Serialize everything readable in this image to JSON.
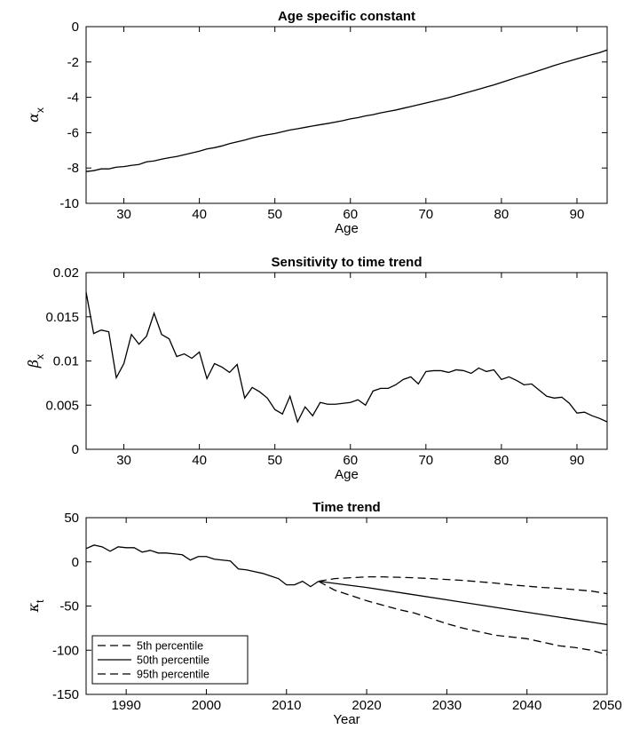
{
  "chart_data": [
    {
      "type": "line",
      "title": "Age specific constant",
      "xlabel": "Age",
      "ylabel": "α",
      "ylabel_sub": "x",
      "xlim": [
        25,
        94
      ],
      "ylim": [
        -10,
        0
      ],
      "xticks": [
        30,
        40,
        50,
        60,
        70,
        80,
        90
      ],
      "yticks": [
        -10,
        -8,
        -6,
        -4,
        -2,
        0
      ],
      "grid": false,
      "series": [
        {
          "style": "solid",
          "x": [
            25,
            26,
            27,
            28,
            29,
            30,
            31,
            32,
            33,
            34,
            35,
            36,
            37,
            38,
            39,
            40,
            41,
            42,
            43,
            44,
            45,
            46,
            47,
            48,
            49,
            50,
            51,
            52,
            53,
            54,
            55,
            56,
            57,
            58,
            59,
            60,
            61,
            62,
            63,
            64,
            65,
            66,
            67,
            68,
            69,
            70,
            71,
            72,
            73,
            74,
            75,
            76,
            77,
            78,
            79,
            80,
            81,
            82,
            83,
            84,
            85,
            86,
            87,
            88,
            89,
            90,
            91,
            92,
            93,
            94
          ],
          "y": [
            -8.2,
            -8.15,
            -8.05,
            -8.05,
            -7.95,
            -7.92,
            -7.85,
            -7.8,
            -7.65,
            -7.6,
            -7.5,
            -7.42,
            -7.35,
            -7.25,
            -7.15,
            -7.05,
            -6.92,
            -6.85,
            -6.75,
            -6.62,
            -6.52,
            -6.42,
            -6.3,
            -6.2,
            -6.12,
            -6.05,
            -5.95,
            -5.85,
            -5.78,
            -5.7,
            -5.62,
            -5.55,
            -5.48,
            -5.4,
            -5.32,
            -5.22,
            -5.15,
            -5.05,
            -4.98,
            -4.88,
            -4.8,
            -4.72,
            -4.62,
            -4.52,
            -4.42,
            -4.32,
            -4.22,
            -4.12,
            -4.02,
            -3.9,
            -3.78,
            -3.66,
            -3.54,
            -3.42,
            -3.3,
            -3.16,
            -3.02,
            -2.88,
            -2.75,
            -2.62,
            -2.48,
            -2.34,
            -2.2,
            -2.07,
            -1.95,
            -1.82,
            -1.7,
            -1.58,
            -1.47,
            -1.32
          ]
        }
      ]
    },
    {
      "type": "line",
      "title": "Sensitivity to time trend",
      "xlabel": "Age",
      "ylabel": "β",
      "ylabel_sub": "x",
      "xlim": [
        25,
        94
      ],
      "ylim": [
        0,
        0.02
      ],
      "xticks": [
        30,
        40,
        50,
        60,
        70,
        80,
        90
      ],
      "yticks": [
        0,
        0.005,
        0.01,
        0.015,
        0.02
      ],
      "grid": false,
      "series": [
        {
          "style": "solid",
          "x": [
            25,
            26,
            27,
            28,
            29,
            30,
            31,
            32,
            33,
            34,
            35,
            36,
            37,
            38,
            39,
            40,
            41,
            42,
            43,
            44,
            45,
            46,
            47,
            48,
            49,
            50,
            51,
            52,
            53,
            54,
            55,
            56,
            57,
            58,
            59,
            60,
            61,
            62,
            63,
            64,
            65,
            66,
            67,
            68,
            69,
            70,
            71,
            72,
            73,
            74,
            75,
            76,
            77,
            78,
            79,
            80,
            81,
            82,
            83,
            84,
            85,
            86,
            87,
            88,
            89,
            90,
            91,
            92,
            93,
            94
          ],
          "y": [
            0.0178,
            0.0131,
            0.0135,
            0.0133,
            0.0081,
            0.0097,
            0.013,
            0.0119,
            0.0128,
            0.0154,
            0.013,
            0.0125,
            0.0105,
            0.0108,
            0.0103,
            0.011,
            0.008,
            0.0097,
            0.0093,
            0.0087,
            0.0096,
            0.0058,
            0.007,
            0.0065,
            0.0058,
            0.0045,
            0.004,
            0.006,
            0.0031,
            0.0048,
            0.0038,
            0.0053,
            0.0051,
            0.0051,
            0.0052,
            0.0053,
            0.0056,
            0.005,
            0.0066,
            0.0069,
            0.0069,
            0.0073,
            0.0079,
            0.0082,
            0.0074,
            0.0088,
            0.0089,
            0.0089,
            0.0087,
            0.009,
            0.0089,
            0.0086,
            0.0092,
            0.0088,
            0.009,
            0.0079,
            0.0082,
            0.0078,
            0.0073,
            0.0074,
            0.0067,
            0.006,
            0.0058,
            0.0059,
            0.0052,
            0.0041,
            0.0042,
            0.0038,
            0.0035,
            0.0031
          ]
        }
      ]
    },
    {
      "type": "line",
      "title": "Time trend",
      "xlabel": "Year",
      "ylabel": "κ",
      "ylabel_sub": "t",
      "xlim": [
        1985,
        2050
      ],
      "ylim": [
        -150,
        50
      ],
      "xticks": [
        1990,
        2000,
        2010,
        2020,
        2030,
        2040,
        2050
      ],
      "yticks": [
        -150,
        -100,
        -50,
        0,
        50
      ],
      "grid": false,
      "legend_position": "bottom-left",
      "historical": {
        "x": [
          1985,
          1986,
          1987,
          1988,
          1989,
          1990,
          1991,
          1992,
          1993,
          1994,
          1995,
          1996,
          1997,
          1998,
          1999,
          2000,
          2001,
          2002,
          2003,
          2004,
          2005,
          2006,
          2007,
          2008,
          2009,
          2010,
          2011,
          2012,
          2013,
          2014
        ],
        "y": [
          15,
          19,
          17,
          12,
          17,
          16,
          16,
          11,
          13,
          10,
          10,
          9,
          8,
          2,
          6,
          6,
          3,
          2,
          1,
          -8,
          -9,
          -11,
          -13,
          -16,
          -19,
          -26,
          -26,
          -22,
          -28,
          -22
        ]
      },
      "series": [
        {
          "name": "5th percentile",
          "style": "dashed",
          "x": [
            2014,
            2016,
            2018,
            2020,
            2022,
            2024,
            2026,
            2028,
            2030,
            2032,
            2034,
            2036,
            2038,
            2040,
            2042,
            2044,
            2046,
            2048,
            2050
          ],
          "y": [
            -22,
            -19,
            -18,
            -17,
            -17,
            -17.5,
            -18,
            -19,
            -20,
            -21,
            -22.5,
            -24,
            -26,
            -27.5,
            -29,
            -30,
            -31.5,
            -33,
            -36
          ]
        },
        {
          "name": "50th percentile",
          "style": "solid",
          "x": [
            2014,
            2020,
            2025,
            2030,
            2035,
            2040,
            2045,
            2050
          ],
          "y": [
            -22,
            -29,
            -36,
            -43,
            -50,
            -57,
            -64,
            -71
          ]
        },
        {
          "name": "95th percentile",
          "style": "dashed",
          "x": [
            2014,
            2016,
            2018,
            2020,
            2022,
            2024,
            2026,
            2028,
            2030,
            2032,
            2034,
            2036,
            2038,
            2040,
            2042,
            2044,
            2046,
            2048,
            2050
          ],
          "y": [
            -22,
            -32,
            -38,
            -44,
            -49,
            -54,
            -58,
            -64,
            -70,
            -75,
            -79,
            -83,
            -85,
            -87,
            -91,
            -95,
            -97,
            -100,
            -105
          ]
        }
      ]
    }
  ]
}
